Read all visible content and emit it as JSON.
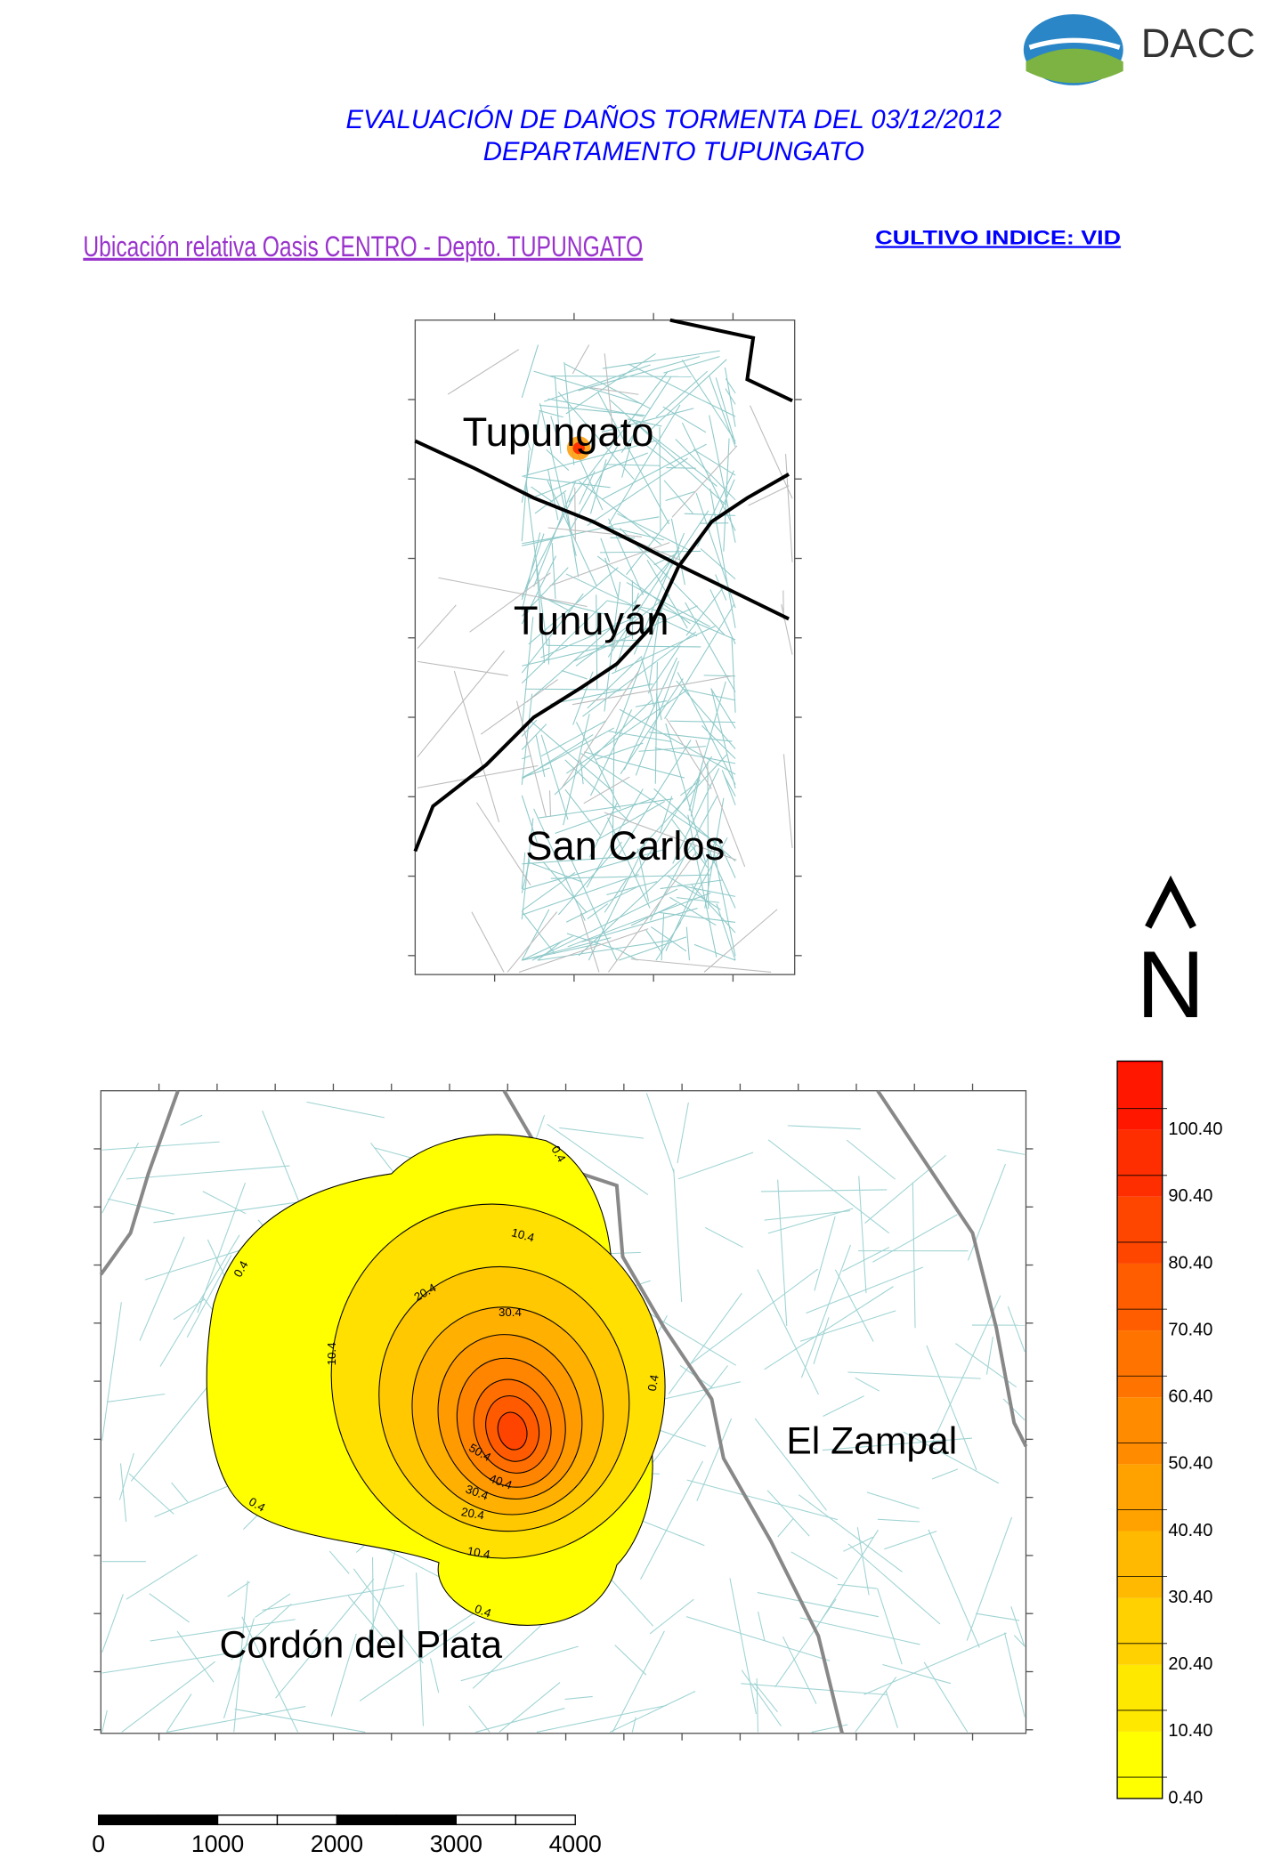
{
  "header": {
    "logo_text": "DACC",
    "title_line1": "EVALUACIÓN DE DAÑOS TORMENTA DEL 03/12/2012",
    "title_line2": "DEPARTAMENTO TUPUNGATO"
  },
  "location_map": {
    "title": "Ubicación relativa Oasis CENTRO - Depto. TUPUNGATO",
    "labels": [
      "Tupungato",
      "Tunuyán",
      "San Carlos"
    ]
  },
  "crop_index": "CULTIVO INDICE: VID",
  "north_arrow": "N",
  "damage_map": {
    "labels": [
      "El Zampal",
      "Cordón del Plata"
    ],
    "contour_labels": [
      "0.4",
      "10.4",
      "20.4",
      "30.4",
      "10.4",
      "0.4",
      "0.4",
      "50.4",
      "40.4",
      "30.4",
      "20.4",
      "10.4",
      "0.4",
      "0.4"
    ]
  },
  "legend": {
    "labels": [
      "100.40",
      "90.40",
      "80.40",
      "70.40",
      "60.40",
      "50.40",
      "40.40",
      "30.40",
      "20.40",
      "10.40",
      "0.40"
    ]
  },
  "scale_bar": {
    "labels": [
      0,
      1000,
      2000,
      3000,
      4000
    ]
  }
}
